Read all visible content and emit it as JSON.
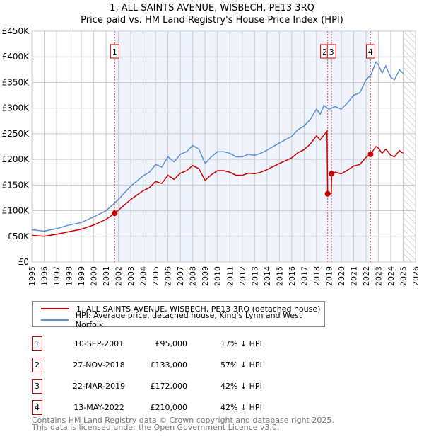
{
  "chart_data": {
    "type": "line",
    "title": "1, ALL SAINTS AVENUE, WISBECH, PE13 3RQ",
    "subtitle": "Price paid vs. HM Land Registry's House Price Index (HPI)",
    "xlim": [
      1995,
      2026
    ],
    "ylim": [
      0,
      450000
    ],
    "y_ticks": [
      "£0",
      "£50K",
      "£100K",
      "£150K",
      "£200K",
      "£250K",
      "£300K",
      "£350K",
      "£400K",
      "£450K"
    ],
    "x_ticks": [
      "1995",
      "1996",
      "1997",
      "1998",
      "1999",
      "2000",
      "2001",
      "2002",
      "2003",
      "2004",
      "2005",
      "2006",
      "2007",
      "2008",
      "2009",
      "2010",
      "2011",
      "2012",
      "2013",
      "2014",
      "2015",
      "2016",
      "2017",
      "2018",
      "2019",
      "2020",
      "2021",
      "2022",
      "2023",
      "2024",
      "2025",
      "2026"
    ],
    "grid": true,
    "series": [
      {
        "name": "1, ALL SAINTS AVENUE, WISBECH, PE13 3RQ (detached house)",
        "color": "#cc0000",
        "x": [
          1995,
          1996,
          1997,
          1998,
          1999,
          2000,
          2001,
          2001.7,
          2002,
          2003,
          2004,
          2004.5,
          2005,
          2005.5,
          2006,
          2006.5,
          2007,
          2007.5,
          2008,
          2008.5,
          2009,
          2009.5,
          2010,
          2010.5,
          2011,
          2011.5,
          2012,
          2012.5,
          2013,
          2013.5,
          2014,
          2015,
          2016,
          2016.5,
          2017,
          2017.5,
          2018,
          2018.3,
          2018.85,
          2018.9,
          2019.2,
          2019.22,
          2019.5,
          2020,
          2020.5,
          2021,
          2021.5,
          2022,
          2022.37,
          2022.8,
          2023,
          2023.3,
          2023.6,
          2024,
          2024.3,
          2024.7,
          2025
        ],
        "y": [
          52,
          50,
          54,
          59,
          64,
          72,
          83,
          95,
          101,
          122,
          139,
          145,
          157,
          153,
          169,
          161,
          173,
          178,
          188,
          182,
          159,
          170,
          178,
          178,
          175,
          169,
          169,
          173,
          172,
          175,
          180,
          192,
          203,
          213,
          219,
          230,
          246,
          238,
          255,
          133,
          133,
          172,
          175,
          172,
          179,
          187,
          190,
          204,
          210,
          225,
          222,
          212,
          220,
          208,
          205,
          217,
          212
        ]
      },
      {
        "name": "HPI: Average price, detached house, King's Lynn and West Norfolk",
        "color": "#5b8fd4",
        "x": [
          1995,
          1996,
          1997,
          1998,
          1999,
          2000,
          2001,
          2001.7,
          2002,
          2003,
          2004,
          2004.5,
          2005,
          2005.5,
          2006,
          2006.5,
          2007,
          2007.5,
          2008,
          2008.5,
          2009,
          2009.5,
          2010,
          2010.5,
          2011,
          2011.5,
          2012,
          2012.5,
          2013,
          2013.5,
          2014,
          2015,
          2016,
          2016.5,
          2017,
          2017.5,
          2018,
          2018.3,
          2018.6,
          2019,
          2019.5,
          2020,
          2020.5,
          2021,
          2021.5,
          2022,
          2022.4,
          2022.8,
          2023,
          2023.3,
          2023.6,
          2024,
          2024.3,
          2024.7,
          2025
        ],
        "y": [
          63,
          60,
          65,
          72,
          77,
          88,
          100,
          115,
          122,
          148,
          168,
          175,
          190,
          185,
          205,
          195,
          210,
          215,
          227,
          220,
          192,
          205,
          215,
          215,
          212,
          205,
          205,
          210,
          208,
          212,
          218,
          232,
          245,
          258,
          265,
          278,
          298,
          288,
          305,
          298,
          303,
          298,
          310,
          325,
          330,
          355,
          365,
          390,
          385,
          368,
          382,
          360,
          355,
          375,
          368
        ]
      }
    ],
    "sales": [
      {
        "label": "1",
        "date": "10-SEP-2001",
        "x": 2001.7,
        "price": "£95,000",
        "value": 95,
        "hpi": "17% ↓ HPI"
      },
      {
        "label": "2",
        "date": "27-NOV-2018",
        "x": 2018.9,
        "price": "£133,000",
        "value": 133,
        "hpi": "57% ↓ HPI"
      },
      {
        "label": "3",
        "date": "22-MAR-2019",
        "x": 2019.22,
        "price": "£172,000",
        "value": 172,
        "hpi": "42% ↓ HPI"
      },
      {
        "label": "4",
        "date": "13-MAY-2022",
        "x": 2022.37,
        "price": "£210,000",
        "value": 210,
        "hpi": "42% ↓ HPI"
      }
    ]
  },
  "footer": {
    "line1": "Contains HM Land Registry data © Crown copyright and database right 2025.",
    "line2": "This data is licensed under the Open Government Licence v3.0."
  }
}
